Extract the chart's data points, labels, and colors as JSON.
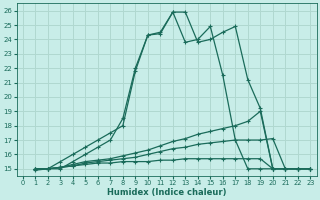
{
  "xlabel": "Humidex (Indice chaleur)",
  "xlim": [
    -0.5,
    23.5
  ],
  "ylim": [
    14.5,
    26.5
  ],
  "xticks": [
    0,
    1,
    2,
    3,
    4,
    5,
    6,
    7,
    8,
    9,
    10,
    11,
    12,
    13,
    14,
    15,
    16,
    17,
    18,
    19,
    20,
    21,
    22,
    23
  ],
  "yticks": [
    15,
    16,
    17,
    18,
    19,
    20,
    21,
    22,
    23,
    24,
    25,
    26
  ],
  "bg_color": "#c8ede8",
  "line_color": "#1a6b5a",
  "grid_color": "#b0d8d0",
  "lines": [
    {
      "x": [
        1,
        2,
        3,
        4,
        5,
        6,
        7,
        8,
        9,
        10,
        11,
        12,
        13,
        14,
        15,
        16,
        17,
        18,
        19,
        20,
        21,
        22,
        23
      ],
      "y": [
        15.0,
        15.0,
        15.5,
        16.0,
        16.5,
        17.0,
        17.5,
        18.0,
        21.8,
        24.3,
        24.4,
        25.9,
        25.9,
        23.8,
        24.0,
        24.5,
        24.9,
        21.2,
        19.2,
        15.0,
        15.0,
        15.0,
        15.0
      ]
    },
    {
      "x": [
        1,
        2,
        3,
        4,
        5,
        6,
        7,
        8,
        9,
        10,
        11,
        12,
        13,
        14,
        15,
        16,
        17,
        18,
        19,
        20,
        21,
        22,
        23
      ],
      "y": [
        15.0,
        15.0,
        15.0,
        15.5,
        16.0,
        16.5,
        17.0,
        18.5,
        22.0,
        24.3,
        24.5,
        25.9,
        23.8,
        24.0,
        24.9,
        21.5,
        17.0,
        15.0,
        15.0,
        15.0,
        15.0,
        15.0,
        15.0
      ]
    },
    {
      "x": [
        1,
        2,
        3,
        4,
        5,
        6,
        7,
        8,
        9,
        10,
        11,
        12,
        13,
        14,
        15,
        16,
        17,
        18,
        19,
        20,
        21,
        22,
        23
      ],
      "y": [
        15.0,
        15.0,
        15.1,
        15.3,
        15.5,
        15.6,
        15.7,
        15.9,
        16.1,
        16.3,
        16.6,
        16.9,
        17.1,
        17.4,
        17.6,
        17.8,
        18.0,
        18.3,
        19.0,
        15.0,
        15.0,
        15.0,
        15.0
      ]
    },
    {
      "x": [
        1,
        2,
        3,
        4,
        5,
        6,
        7,
        8,
        9,
        10,
        11,
        12,
        13,
        14,
        15,
        16,
        17,
        18,
        19,
        20,
        21,
        22,
        23
      ],
      "y": [
        15.0,
        15.0,
        15.1,
        15.2,
        15.4,
        15.5,
        15.6,
        15.7,
        15.8,
        16.0,
        16.2,
        16.4,
        16.5,
        16.7,
        16.8,
        16.9,
        17.0,
        17.0,
        17.0,
        17.1,
        15.0,
        15.0,
        15.0
      ]
    },
    {
      "x": [
        1,
        2,
        3,
        4,
        5,
        6,
        7,
        8,
        9,
        10,
        11,
        12,
        13,
        14,
        15,
        16,
        17,
        18,
        19,
        20,
        21,
        22,
        23
      ],
      "y": [
        14.9,
        15.0,
        15.1,
        15.2,
        15.3,
        15.4,
        15.4,
        15.5,
        15.5,
        15.5,
        15.6,
        15.6,
        15.7,
        15.7,
        15.7,
        15.7,
        15.7,
        15.7,
        15.7,
        15.0,
        15.0,
        15.0,
        15.0
      ]
    }
  ]
}
